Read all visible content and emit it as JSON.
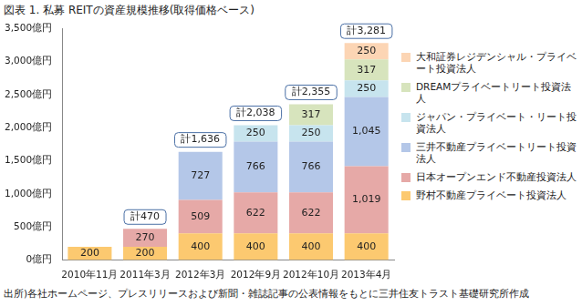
{
  "chart_data": {
    "type": "bar",
    "title": "図表 1. 私募 REITの資産規模推移(取得価格ベース)",
    "source": "出所)各社ホームページ、プレスリリースおよび新聞・雑誌記事の公表情報をもとに三井住友トラスト基礎研究所作成",
    "categories": [
      "2010年11月",
      "2011年3月",
      "2012年3月",
      "2012年9月",
      "2012年10月",
      "2013年4月"
    ],
    "series": [
      {
        "name": "野村不動産プライベート投資法人",
        "color": "#fcc970",
        "values": [
          200,
          200,
          400,
          400,
          400,
          400
        ],
        "value_labels": [
          "200",
          "200",
          "400",
          "400",
          "400",
          "400"
        ]
      },
      {
        "name": "日本オープンエンド不動産投資法人",
        "color": "#e6a9a7",
        "values": [
          null,
          270,
          509,
          622,
          622,
          1019
        ],
        "value_labels": [
          null,
          "270",
          "509",
          "622",
          "622",
          "1,019"
        ]
      },
      {
        "name": "三井不動産プライベートリート投資法人",
        "color": "#b4c7e8",
        "values": [
          null,
          null,
          727,
          766,
          766,
          1045
        ],
        "value_labels": [
          null,
          null,
          "727",
          "766",
          "766",
          "1,045"
        ]
      },
      {
        "name": "ジャパン・プライベート・リート投資法人",
        "color": "#c7e4ee",
        "values": [
          null,
          null,
          null,
          250,
          250,
          250
        ],
        "value_labels": [
          null,
          null,
          null,
          "250",
          "250",
          "250"
        ]
      },
      {
        "name": "DREAMプライベートリート投資法人",
        "color": "#d7e4bd",
        "values": [
          null,
          null,
          null,
          null,
          317,
          317
        ],
        "value_labels": [
          null,
          null,
          null,
          null,
          "317",
          "317"
        ]
      },
      {
        "name": "大和証券レジデンシャル・プライベート投資法人",
        "color": "#fcd5b4",
        "values": [
          null,
          null,
          null,
          null,
          null,
          250
        ],
        "value_labels": [
          null,
          null,
          null,
          null,
          null,
          "250"
        ]
      }
    ],
    "totals": [
      null,
      470,
      1636,
      2038,
      2355,
      3281
    ],
    "total_labels": [
      null,
      "計470",
      "計1,636",
      "計2,038",
      "計2,355",
      "計3,281"
    ],
    "ylim": [
      0,
      3500
    ],
    "yticks": [
      {
        "value": 0,
        "label": "0億円"
      },
      {
        "value": 500,
        "label": "500億円"
      },
      {
        "value": 1000,
        "label": "1,000億円"
      },
      {
        "value": 1500,
        "label": "1,500億円"
      },
      {
        "value": 2000,
        "label": "2,000億円"
      },
      {
        "value": 2500,
        "label": "2,500億円"
      },
      {
        "value": 3000,
        "label": "3,000億円"
      },
      {
        "value": 3500,
        "label": "3,500億円"
      }
    ],
    "stacked": true,
    "data_labels": true,
    "grid": false,
    "legend": "right"
  }
}
